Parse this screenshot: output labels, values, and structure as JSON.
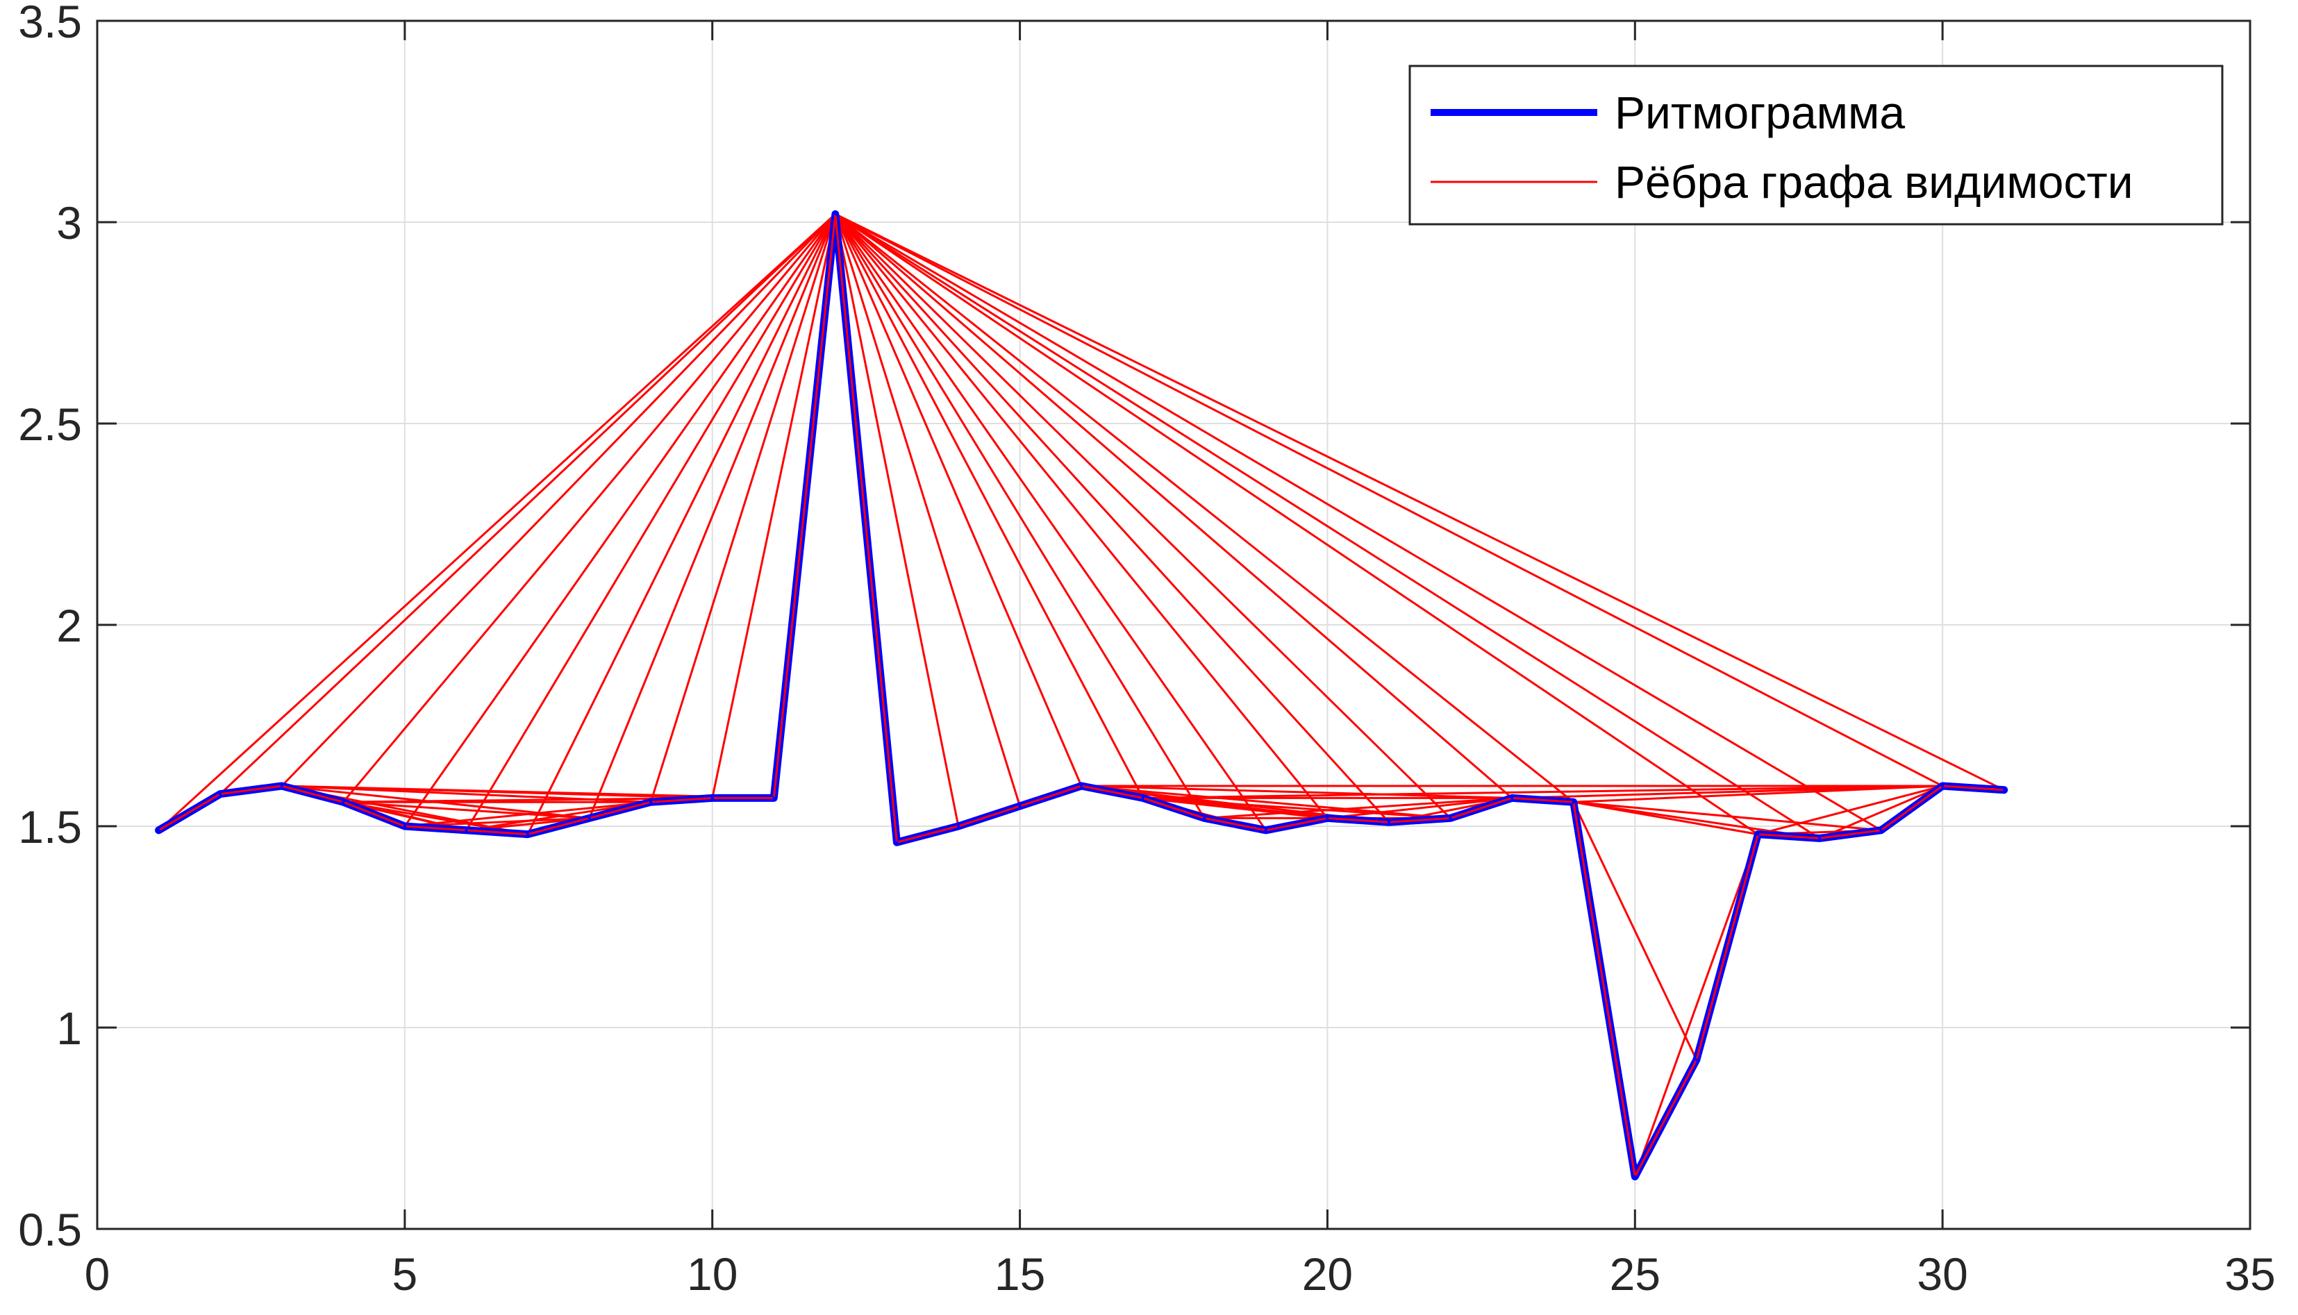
{
  "chart_data": {
    "type": "line",
    "title": "",
    "xlabel": "",
    "ylabel": "",
    "xlim": [
      0,
      35
    ],
    "ylim": [
      0.5,
      3.5
    ],
    "xticks": [
      0,
      5,
      10,
      15,
      20,
      25,
      30,
      35
    ],
    "xtick_labels": [
      "0",
      "5",
      "10",
      "15",
      "20",
      "25",
      "30",
      "35"
    ],
    "yticks": [
      0.5,
      1,
      1.5,
      2,
      2.5,
      3,
      3.5
    ],
    "ytick_labels": [
      "0.5",
      "1",
      "1.5",
      "2",
      "2.5",
      "3",
      "3.5"
    ],
    "grid": true,
    "legend_position": "top-right",
    "series": [
      {
        "name": "Ритмограмма",
        "color": "#0000ff",
        "x": [
          1,
          2,
          3,
          4,
          5,
          6,
          7,
          8,
          9,
          10,
          11,
          12,
          13,
          14,
          15,
          16,
          17,
          18,
          19,
          20,
          21,
          22,
          23,
          24,
          25,
          26,
          27,
          28,
          29,
          30,
          31
        ],
        "y": [
          1.49,
          1.58,
          1.6,
          1.56,
          1.5,
          1.49,
          1.48,
          1.52,
          1.56,
          1.57,
          1.57,
          3.02,
          1.46,
          1.5,
          1.55,
          1.6,
          1.57,
          1.52,
          1.49,
          1.52,
          1.51,
          1.52,
          1.57,
          1.56,
          0.63,
          0.92,
          1.48,
          1.47,
          1.49,
          1.6,
          1.59
        ]
      },
      {
        "name": "Рёбра графа видимости",
        "color": "#ff0000",
        "description_of_edges": "natural visibility graph edges computed from series values"
      }
    ]
  }
}
